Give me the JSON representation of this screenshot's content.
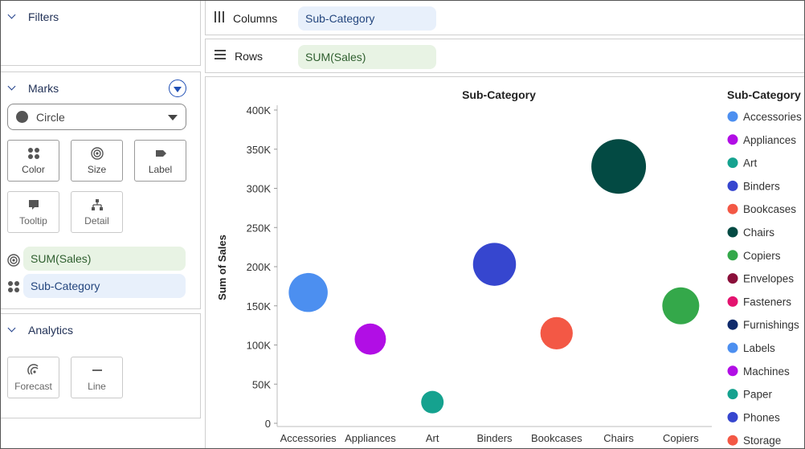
{
  "filters": {
    "title": "Filters"
  },
  "marks": {
    "title": "Marks",
    "mark_type": "Circle",
    "tiles": [
      {
        "label": "Color"
      },
      {
        "label": "Size"
      },
      {
        "label": "Label"
      },
      {
        "label": "Tooltip"
      },
      {
        "label": "Detail"
      }
    ],
    "fields": [
      {
        "label": "SUM(Sales)",
        "icon": "size-icon"
      },
      {
        "label": "Sub-Category",
        "icon": "color-icon"
      }
    ]
  },
  "analytics": {
    "title": "Analytics",
    "tiles": [
      {
        "label": "Forecast"
      },
      {
        "label": "Line"
      }
    ]
  },
  "shelves": {
    "columns_label": "Columns",
    "columns_pill": "Sub-Category",
    "rows_label": "Rows",
    "rows_pill": "SUM(Sales)"
  },
  "chart_data": {
    "type": "scatter",
    "title": "Sub-Category",
    "xlabel": "",
    "ylabel": "Sum of Sales",
    "ylim": [
      0,
      400000
    ],
    "y_ticks": [
      0,
      50000,
      100000,
      150000,
      200000,
      250000,
      300000,
      350000,
      400000
    ],
    "y_tick_labels": [
      "0",
      "50K",
      "100K",
      "150K",
      "200K",
      "250K",
      "300K",
      "350K",
      "400K"
    ],
    "categories": [
      "Accessories",
      "Appliances",
      "Art",
      "Binders",
      "Bookcases",
      "Chairs",
      "Copiers"
    ],
    "points": [
      {
        "category": "Accessories",
        "value": 167000,
        "color": "#4c8ff0"
      },
      {
        "category": "Appliances",
        "value": 107500,
        "color": "#b10ee5"
      },
      {
        "category": "Art",
        "value": 27000,
        "color": "#15a28f"
      },
      {
        "category": "Binders",
        "value": 203000,
        "color": "#3646cf"
      },
      {
        "category": "Bookcases",
        "value": 115000,
        "color": "#f35845"
      },
      {
        "category": "Chairs",
        "value": 328000,
        "color": "#034a43"
      },
      {
        "category": "Copiers",
        "value": 150000,
        "color": "#34a84a"
      }
    ],
    "legend": {
      "title": "Sub-Category",
      "placement": "right",
      "items": [
        {
          "label": "Accessories",
          "color": "#4c8ff0"
        },
        {
          "label": "Appliances",
          "color": "#b10ee5"
        },
        {
          "label": "Art",
          "color": "#15a28f"
        },
        {
          "label": "Binders",
          "color": "#3646cf"
        },
        {
          "label": "Bookcases",
          "color": "#f35845"
        },
        {
          "label": "Chairs",
          "color": "#034a43"
        },
        {
          "label": "Copiers",
          "color": "#34a84a"
        },
        {
          "label": "Envelopes",
          "color": "#8a0f3a"
        },
        {
          "label": "Fasteners",
          "color": "#e3136f"
        },
        {
          "label": "Furnishings",
          "color": "#0f2a6b"
        },
        {
          "label": "Labels",
          "color": "#4c8ff0"
        },
        {
          "label": "Machines",
          "color": "#b10ee5"
        },
        {
          "label": "Paper",
          "color": "#15a28f"
        },
        {
          "label": "Phones",
          "color": "#3646cf"
        },
        {
          "label": "Storage",
          "color": "#f35845"
        }
      ]
    }
  }
}
